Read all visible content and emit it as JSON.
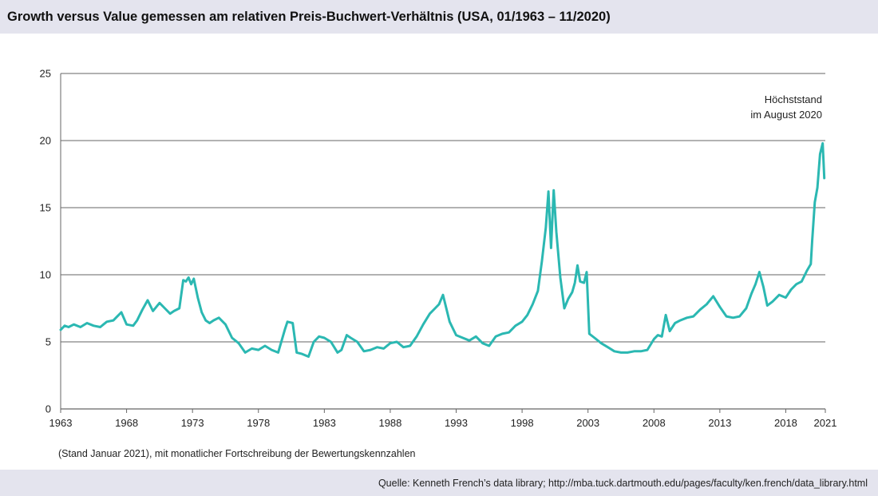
{
  "header": {
    "title": "Growth versus Value gemessen am relativen Preis-Buchwert-Verhältnis (USA, 01/1963 – 11/2020)"
  },
  "footer": {
    "note": "(Stand Januar 2021), mit monatlicher Fortschreibung der Bewertungskennzahlen",
    "source": "Quelle: Kenneth French’s data library; http://mba.tuck.dartmouth.edu/pages/faculty/ken.french/data_library.html"
  },
  "colors": {
    "line": "#2bb8b2",
    "grid": "#666666",
    "band": "#e4e4ee"
  },
  "chart_data": {
    "type": "line",
    "title": "Growth versus Value gemessen am relativen Preis-Buchwert-Verhältnis (USA, 01/1963 – 11/2020)",
    "xlabel": "",
    "ylabel": "",
    "xlim": [
      1963,
      2021
    ],
    "ylim": [
      0,
      25
    ],
    "yticks": [
      0,
      5,
      10,
      15,
      20,
      25
    ],
    "xticks": [
      1963,
      1968,
      1973,
      1978,
      1983,
      1988,
      1993,
      1998,
      2003,
      2008,
      2013,
      2018,
      2021
    ],
    "grid": "horizontal",
    "annotation": {
      "lines": [
        "Höchststand",
        "im August 2020"
      ],
      "x": 2020.6,
      "y": 19.8
    },
    "series": [
      {
        "x": [
          1963.0,
          1963.3,
          1963.6,
          1964.0,
          1964.5,
          1965.0,
          1965.5,
          1966.0,
          1966.5,
          1967.0,
          1967.3,
          1967.6,
          1968.0,
          1968.5,
          1968.8,
          1969.2,
          1969.6,
          1970.0,
          1970.5,
          1970.9,
          1971.3,
          1971.6,
          1972.0,
          1972.3,
          1972.5,
          1972.7,
          1972.9,
          1973.1,
          1973.4,
          1973.7,
          1974.0,
          1974.3,
          1974.6,
          1975.0,
          1975.5,
          1976.0,
          1976.5,
          1977.0,
          1977.5,
          1978.0,
          1978.5,
          1979.0,
          1979.5,
          1980.0,
          1980.2,
          1980.6,
          1980.9,
          1981.3,
          1981.8,
          1982.2,
          1982.6,
          1983.0,
          1983.5,
          1984.0,
          1984.3,
          1984.7,
          1985.0,
          1985.5,
          1986.0,
          1986.5,
          1987.0,
          1987.5,
          1988.0,
          1988.5,
          1989.0,
          1989.5,
          1990.0,
          1990.5,
          1991.0,
          1991.4,
          1991.7,
          1992.0,
          1992.5,
          1993.0,
          1993.5,
          1994.0,
          1994.5,
          1995.0,
          1995.5,
          1996.0,
          1996.5,
          1997.0,
          1997.5,
          1998.0,
          1998.4,
          1998.8,
          1999.2,
          1999.5,
          1999.8,
          2000.0,
          2000.2,
          2000.4,
          2000.6,
          2000.9,
          2001.2,
          2001.5,
          2001.8,
          2002.0,
          2002.2,
          2002.4,
          2002.7,
          2002.9,
          2003.1,
          2003.5,
          2004.0,
          2004.5,
          2005.0,
          2005.5,
          2006.0,
          2006.5,
          2007.0,
          2007.5,
          2008.0,
          2008.3,
          2008.6,
          2008.9,
          2009.2,
          2009.6,
          2010.0,
          2010.5,
          2011.0,
          2011.5,
          2012.0,
          2012.5,
          2013.0,
          2013.5,
          2014.0,
          2014.5,
          2015.0,
          2015.4,
          2015.7,
          2016.0,
          2016.3,
          2016.6,
          2017.0,
          2017.5,
          2018.0,
          2018.4,
          2018.8,
          2019.2,
          2019.6,
          2019.9,
          2020.0,
          2020.2,
          2020.4,
          2020.6,
          2020.8,
          2020.92
        ],
        "y": [
          5.9,
          6.2,
          6.1,
          6.3,
          6.1,
          6.4,
          6.2,
          6.1,
          6.5,
          6.6,
          6.9,
          7.2,
          6.3,
          6.2,
          6.6,
          7.4,
          8.1,
          7.3,
          7.9,
          7.5,
          7.1,
          7.3,
          7.5,
          9.6,
          9.5,
          9.8,
          9.3,
          9.7,
          8.3,
          7.2,
          6.6,
          6.4,
          6.6,
          6.8,
          6.3,
          5.3,
          4.9,
          4.2,
          4.5,
          4.4,
          4.7,
          4.4,
          4.2,
          5.9,
          6.5,
          6.4,
          4.2,
          4.1,
          3.9,
          5.0,
          5.4,
          5.3,
          5.0,
          4.2,
          4.4,
          5.5,
          5.3,
          5.0,
          4.3,
          4.4,
          4.6,
          4.5,
          4.9,
          5.0,
          4.6,
          4.7,
          5.4,
          6.3,
          7.1,
          7.5,
          7.8,
          8.5,
          6.5,
          5.5,
          5.3,
          5.1,
          5.4,
          4.9,
          4.7,
          5.4,
          5.6,
          5.7,
          6.2,
          6.5,
          7.0,
          7.8,
          8.8,
          11.0,
          13.5,
          16.2,
          12.0,
          16.3,
          13.2,
          9.8,
          7.5,
          8.2,
          8.7,
          9.4,
          10.7,
          9.5,
          9.4,
          10.2,
          5.6,
          5.3,
          4.9,
          4.6,
          4.3,
          4.2,
          4.2,
          4.3,
          4.3,
          4.4,
          5.2,
          5.5,
          5.4,
          7.0,
          5.8,
          6.4,
          6.6,
          6.8,
          6.9,
          7.4,
          7.8,
          8.4,
          7.6,
          6.9,
          6.8,
          6.9,
          7.5,
          8.6,
          9.3,
          10.2,
          9.1,
          7.7,
          8.0,
          8.5,
          8.3,
          8.9,
          9.3,
          9.5,
          10.3,
          10.8,
          12.5,
          15.4,
          16.5,
          19.0,
          19.8,
          17.2
        ]
      }
    ]
  }
}
